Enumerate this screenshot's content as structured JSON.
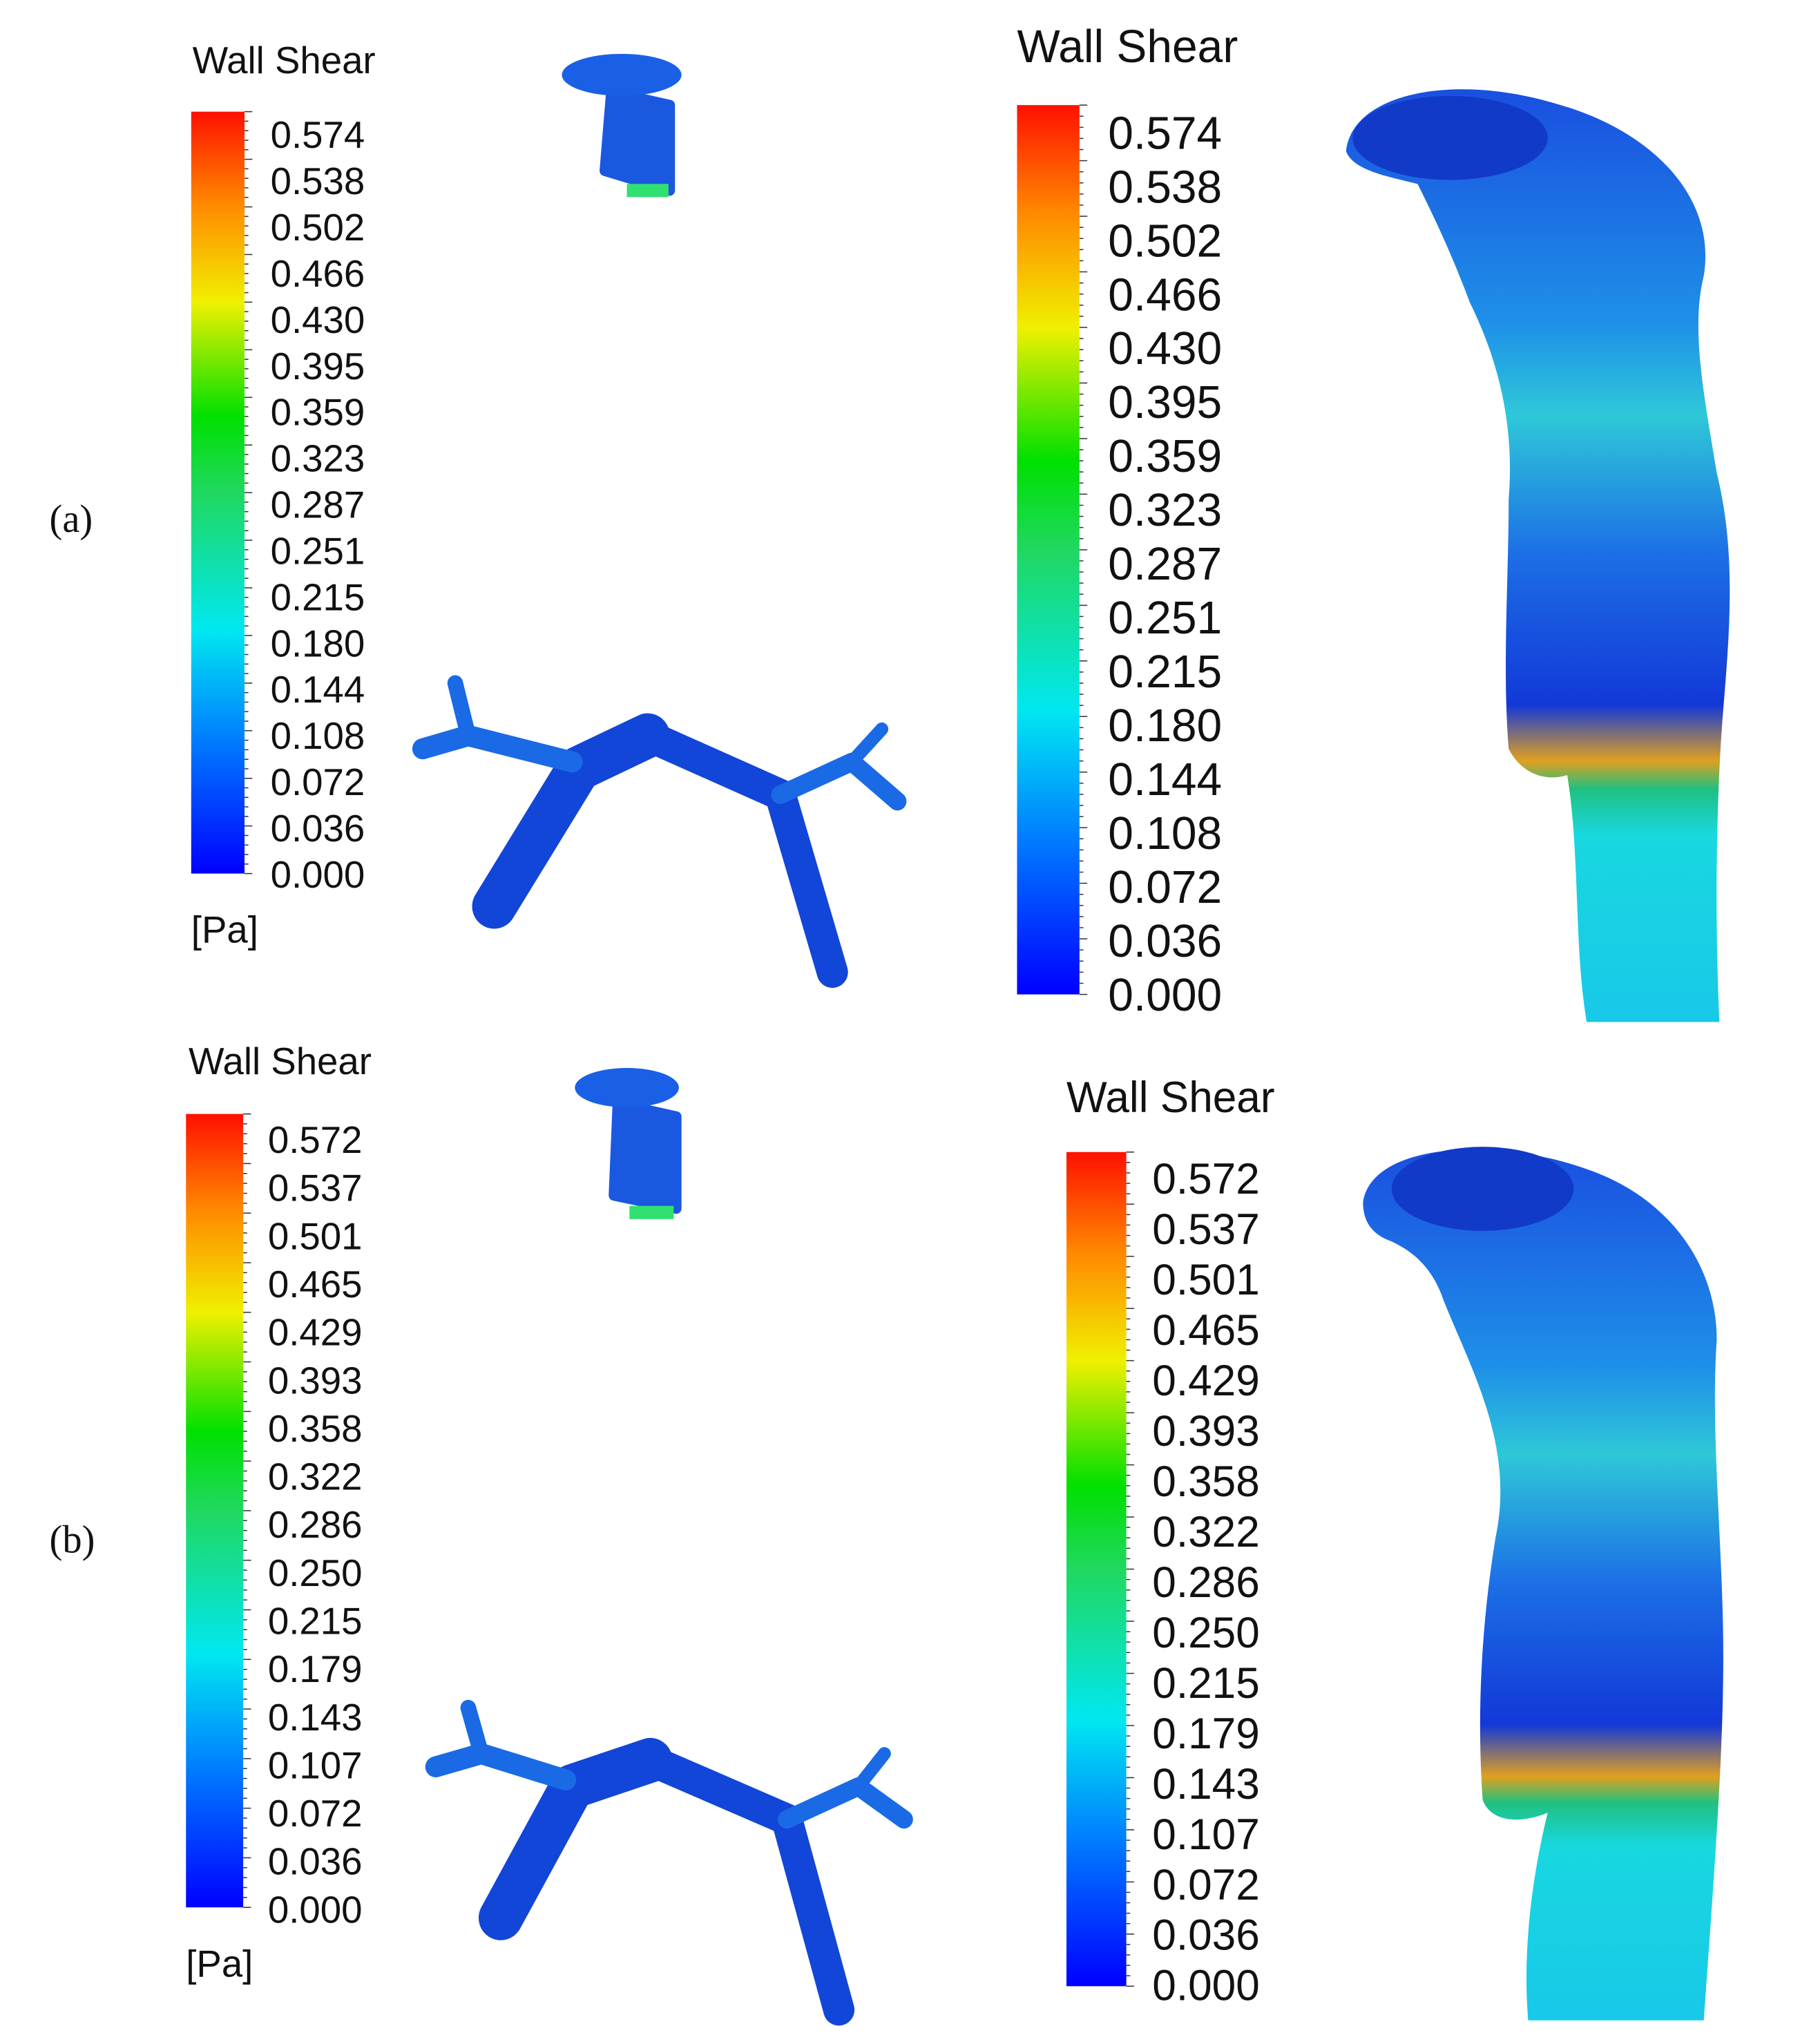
{
  "panels": [
    {
      "label": "(a)",
      "colorbars": [
        {
          "title": "Wall Shear",
          "ticks": [
            "0.574",
            "0.538",
            "0.502",
            "0.466",
            "0.430",
            "0.395",
            "0.359",
            "0.323",
            "0.287",
            "0.251",
            "0.215",
            "0.180",
            "0.144",
            "0.108",
            "0.072",
            "0.036",
            "0.000"
          ],
          "unit": "[Pa]"
        },
        {
          "title": "Wall Shear",
          "ticks": [
            "0.574",
            "0.538",
            "0.502",
            "0.466",
            "0.430",
            "0.395",
            "0.359",
            "0.323",
            "0.287",
            "0.251",
            "0.215",
            "0.180",
            "0.144",
            "0.108",
            "0.072",
            "0.036",
            "0.000"
          ]
        }
      ]
    },
    {
      "label": "(b)",
      "colorbars": [
        {
          "title": "Wall Shear",
          "ticks": [
            "0.572",
            "0.537",
            "0.501",
            "0.465",
            "0.429",
            "0.393",
            "0.358",
            "0.322",
            "0.286",
            "0.250",
            "0.215",
            "0.179",
            "0.143",
            "0.107",
            "0.072",
            "0.036",
            "0.000"
          ],
          "unit": "[Pa]"
        },
        {
          "title": "Wall Shear",
          "ticks": [
            "0.572",
            "0.537",
            "0.501",
            "0.465",
            "0.429",
            "0.393",
            "0.358",
            "0.322",
            "0.286",
            "0.250",
            "0.215",
            "0.179",
            "0.143",
            "0.107",
            "0.072",
            "0.036",
            "0.000"
          ]
        }
      ]
    }
  ]
}
